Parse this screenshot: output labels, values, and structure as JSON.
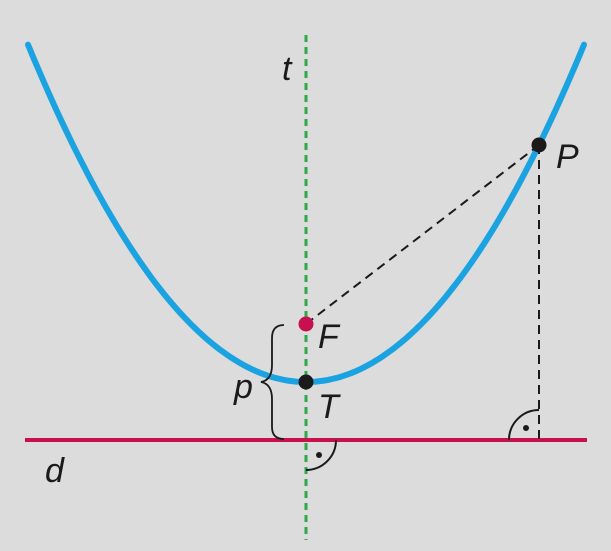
{
  "diagram": {
    "labels": {
      "axis": "t",
      "focus": "F",
      "vertex": "T",
      "point": "P",
      "parameter": "p",
      "directrix": "d"
    },
    "colors": {
      "background": "#dcdcdc",
      "parabola": "#1aa3e0",
      "directrix": "#c8104e",
      "focus": "#c8104e",
      "axis": "#2ea84a",
      "points": "#1a1a1a",
      "construction": "#1a1a1a"
    },
    "elements": [
      "parabola",
      "axis-of-symmetry",
      "directrix",
      "focus-point",
      "vertex-point",
      "point-on-parabola",
      "focal-segment",
      "perpendicular-to-directrix",
      "right-angle-marks",
      "parameter-brace"
    ]
  }
}
